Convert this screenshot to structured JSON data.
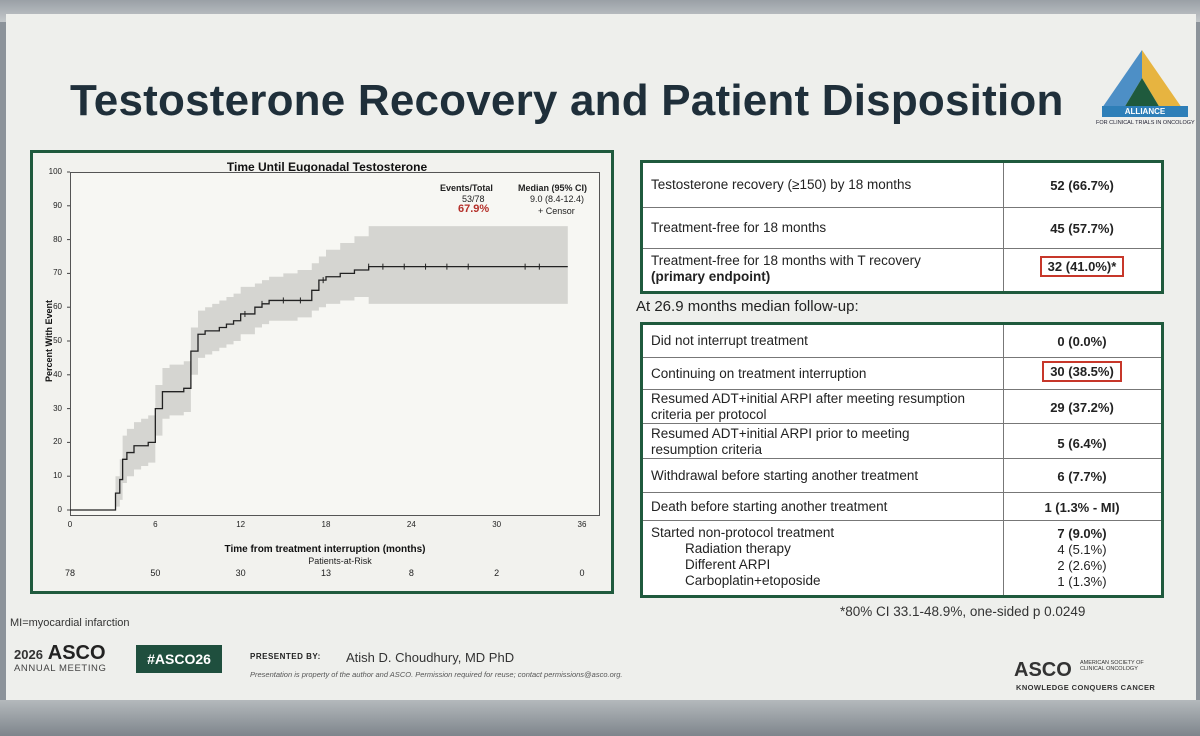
{
  "slide": {
    "title": "Testosterone Recovery and Patient Disposition",
    "logo_text": "ALLIANCE",
    "logo_sub": "FOR CLINICAL TRIALS IN ONCOLOGY"
  },
  "chart_data": {
    "type": "line",
    "title": "Time Until Eugonadal Testosterone",
    "xlabel": "Time from treatment interruption (months)",
    "ylabel": "Percent With Event",
    "xlim": [
      0,
      36
    ],
    "ylim": [
      0,
      100
    ],
    "xticks": [
      "0",
      "6",
      "12",
      "18",
      "24",
      "30",
      "36"
    ],
    "yticks": [
      "0",
      "10",
      "20",
      "30",
      "40",
      "50",
      "60",
      "70",
      "80",
      "90",
      "100"
    ],
    "legend": {
      "events_header": "Events/Total",
      "median_header": "Median (95% CI)",
      "events_value": "53/78",
      "median_value": "9.0 (8.4-12.4)",
      "percent": "67.9%",
      "censor": "+ Censor"
    },
    "series": [
      {
        "x": [
          0,
          3,
          3.2,
          3.5,
          3.7,
          4,
          4.5,
          5,
          5.5,
          6,
          6.5,
          7,
          8,
          8.5,
          9,
          9.5,
          10,
          10.5,
          11,
          11.5,
          12,
          13,
          13.5,
          14,
          15,
          16,
          17,
          17.5,
          18,
          19,
          20,
          21,
          22,
          35
        ],
        "y": [
          0,
          0,
          5,
          9,
          15,
          17,
          19,
          19,
          20,
          30,
          35,
          35,
          36,
          47,
          52,
          53,
          53,
          54,
          55,
          56,
          58,
          60,
          61,
          62,
          62,
          62,
          65,
          68,
          69,
          70,
          71,
          72,
          72,
          72
        ],
        "ci_lower": [
          0,
          0,
          1,
          3,
          8,
          10,
          12,
          13,
          14,
          22,
          27,
          28,
          29,
          40,
          45,
          46,
          47,
          48,
          49,
          50,
          52,
          54,
          55,
          56,
          56,
          57,
          59,
          60,
          61,
          62,
          63,
          61,
          61,
          61
        ],
        "ci_upper": [
          0,
          0,
          10,
          15,
          22,
          24,
          26,
          27,
          28,
          37,
          42,
          43,
          44,
          54,
          59,
          60,
          61,
          62,
          63,
          64,
          66,
          67,
          68,
          69,
          70,
          71,
          73,
          75,
          77,
          79,
          81,
          84,
          84,
          84
        ]
      }
    ],
    "censor_x": [
      12.3,
      13.5,
      15,
      16.2,
      17.8,
      21,
      22,
      23.5,
      25,
      26.5,
      28,
      32,
      33
    ],
    "patients_at_risk_label": "Patients-at-Risk",
    "patients_at_risk": [
      "78",
      "50",
      "30",
      "13",
      "8",
      "2",
      "0"
    ]
  },
  "table1": {
    "rows": [
      {
        "label": "Testosterone recovery (≥150) by 18 months",
        "value": "52 (66.7%)"
      },
      {
        "label": "Treatment-free for 18 months",
        "value": "45 (57.7%)"
      },
      {
        "label_line1": "Treatment-free for 18 months with T recovery",
        "label_line2": "(primary endpoint)",
        "value": "32 (41.0%)*"
      }
    ]
  },
  "subheading": "At 26.9 months median follow-up:",
  "table2": {
    "rows": [
      {
        "label": "Did not interrupt treatment",
        "value": "0 (0.0%)"
      },
      {
        "label": "Continuing on treatment interruption",
        "value": "30 (38.5%)"
      },
      {
        "label_line1": "Resumed ADT+initial ARPI after meeting resumption",
        "label_line2": "criteria per protocol",
        "value": "29 (37.2%)"
      },
      {
        "label_line1": "Resumed ADT+initial ARPI prior to meeting",
        "label_line2": "resumption criteria",
        "value": "5 (6.4%)"
      },
      {
        "label": "Withdrawal before starting another treatment",
        "value": "6 (7.7%)"
      },
      {
        "label": "Death before starting another treatment",
        "value": "1 (1.3% - MI)"
      },
      {
        "label": "Started non-protocol treatment",
        "value": "7 (9.0%)",
        "sub": [
          {
            "label": "Radiation therapy",
            "value": "4 (5.1%)"
          },
          {
            "label": "Different ARPI",
            "value": "2 (2.6%)"
          },
          {
            "label": "Carboplatin+etoposide",
            "value": "1 (1.3%)"
          }
        ]
      }
    ]
  },
  "footnote": "*80% CI 33.1-48.9%, one-sided p 0.0249",
  "footer": {
    "mi_note": "MI=myocardial infarction",
    "year": "2026",
    "asco": "ASCO",
    "meeting": "ANNUAL MEETING",
    "hashtag": "#ASCO26",
    "presented_by": "PRESENTED BY:",
    "presenter": "Atish D. Choudhury, MD PhD",
    "copyright": "Presentation is property of the author and ASCO. Permission required for reuse; contact permissions@asco.org.",
    "asco_logo": "ASCO",
    "asco_logo_right": "AMERICAN SOCIETY OF CLINICAL ONCOLOGY",
    "tagline": "KNOWLEDGE CONQUERS CANCER"
  },
  "colors": {
    "accent_green": "#1f5a3d",
    "highlight_red": "#c7372a",
    "ci_band": "#c9c9c6"
  }
}
